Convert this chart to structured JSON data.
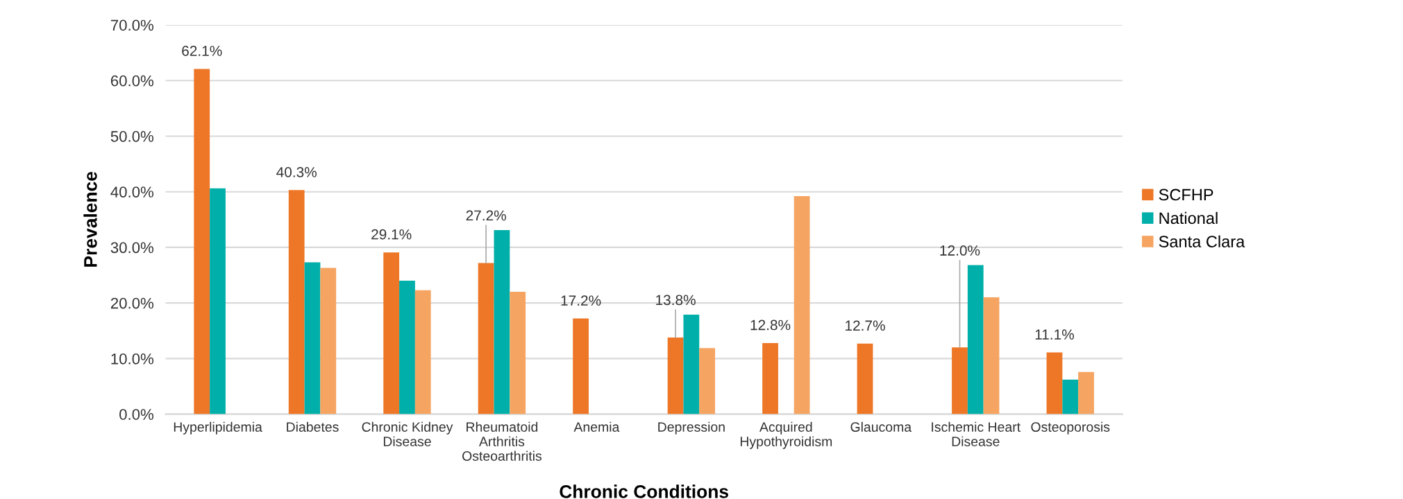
{
  "chart_data": {
    "type": "bar",
    "xlabel": "Chronic Conditions",
    "ylabel": "Prevalence",
    "categories": [
      "Hyperlipidemia",
      "Diabetes",
      "Chronic Kidney\nDisease",
      "Rheumatoid\nArthritis\nOsteoarthritis",
      "Anemia",
      "Depression",
      "Acquired\nHypothyroidism",
      "Glaucoma",
      "Ischemic Heart\nDisease",
      "Osteoporosis"
    ],
    "series": [
      {
        "name": "SCFHP",
        "color": "#ed7726",
        "values": [
          62.1,
          40.3,
          29.1,
          27.2,
          17.2,
          13.8,
          12.8,
          12.7,
          12.0,
          11.1
        ],
        "value_labels": [
          "62.1%",
          "40.3%",
          "29.1%",
          "27.2%",
          "17.2%",
          "13.8%",
          "12.8%",
          "12.7%",
          "12.0%",
          "11.1%"
        ]
      },
      {
        "name": "National",
        "color": "#00afa9",
        "values": [
          40.6,
          27.3,
          24.0,
          33.1,
          null,
          17.9,
          null,
          null,
          26.8,
          6.2
        ]
      },
      {
        "name": "Santa Clara",
        "color": "#f6a462",
        "values": [
          null,
          26.3,
          22.3,
          22.0,
          null,
          11.9,
          39.2,
          null,
          21.0,
          7.6
        ]
      }
    ],
    "ylim": [
      0,
      70
    ],
    "yticks": [
      {
        "value": 0,
        "label": "0.0%"
      },
      {
        "value": 10,
        "label": "10.0%"
      },
      {
        "value": 20,
        "label": "20.0%"
      },
      {
        "value": 30,
        "label": "30.0%"
      },
      {
        "value": 40,
        "label": "40.0%"
      },
      {
        "value": 50,
        "label": "50.0%"
      },
      {
        "value": 60,
        "label": "60.0%"
      },
      {
        "value": 70,
        "label": "70.0%"
      }
    ],
    "grid": "y",
    "legend": "right"
  }
}
